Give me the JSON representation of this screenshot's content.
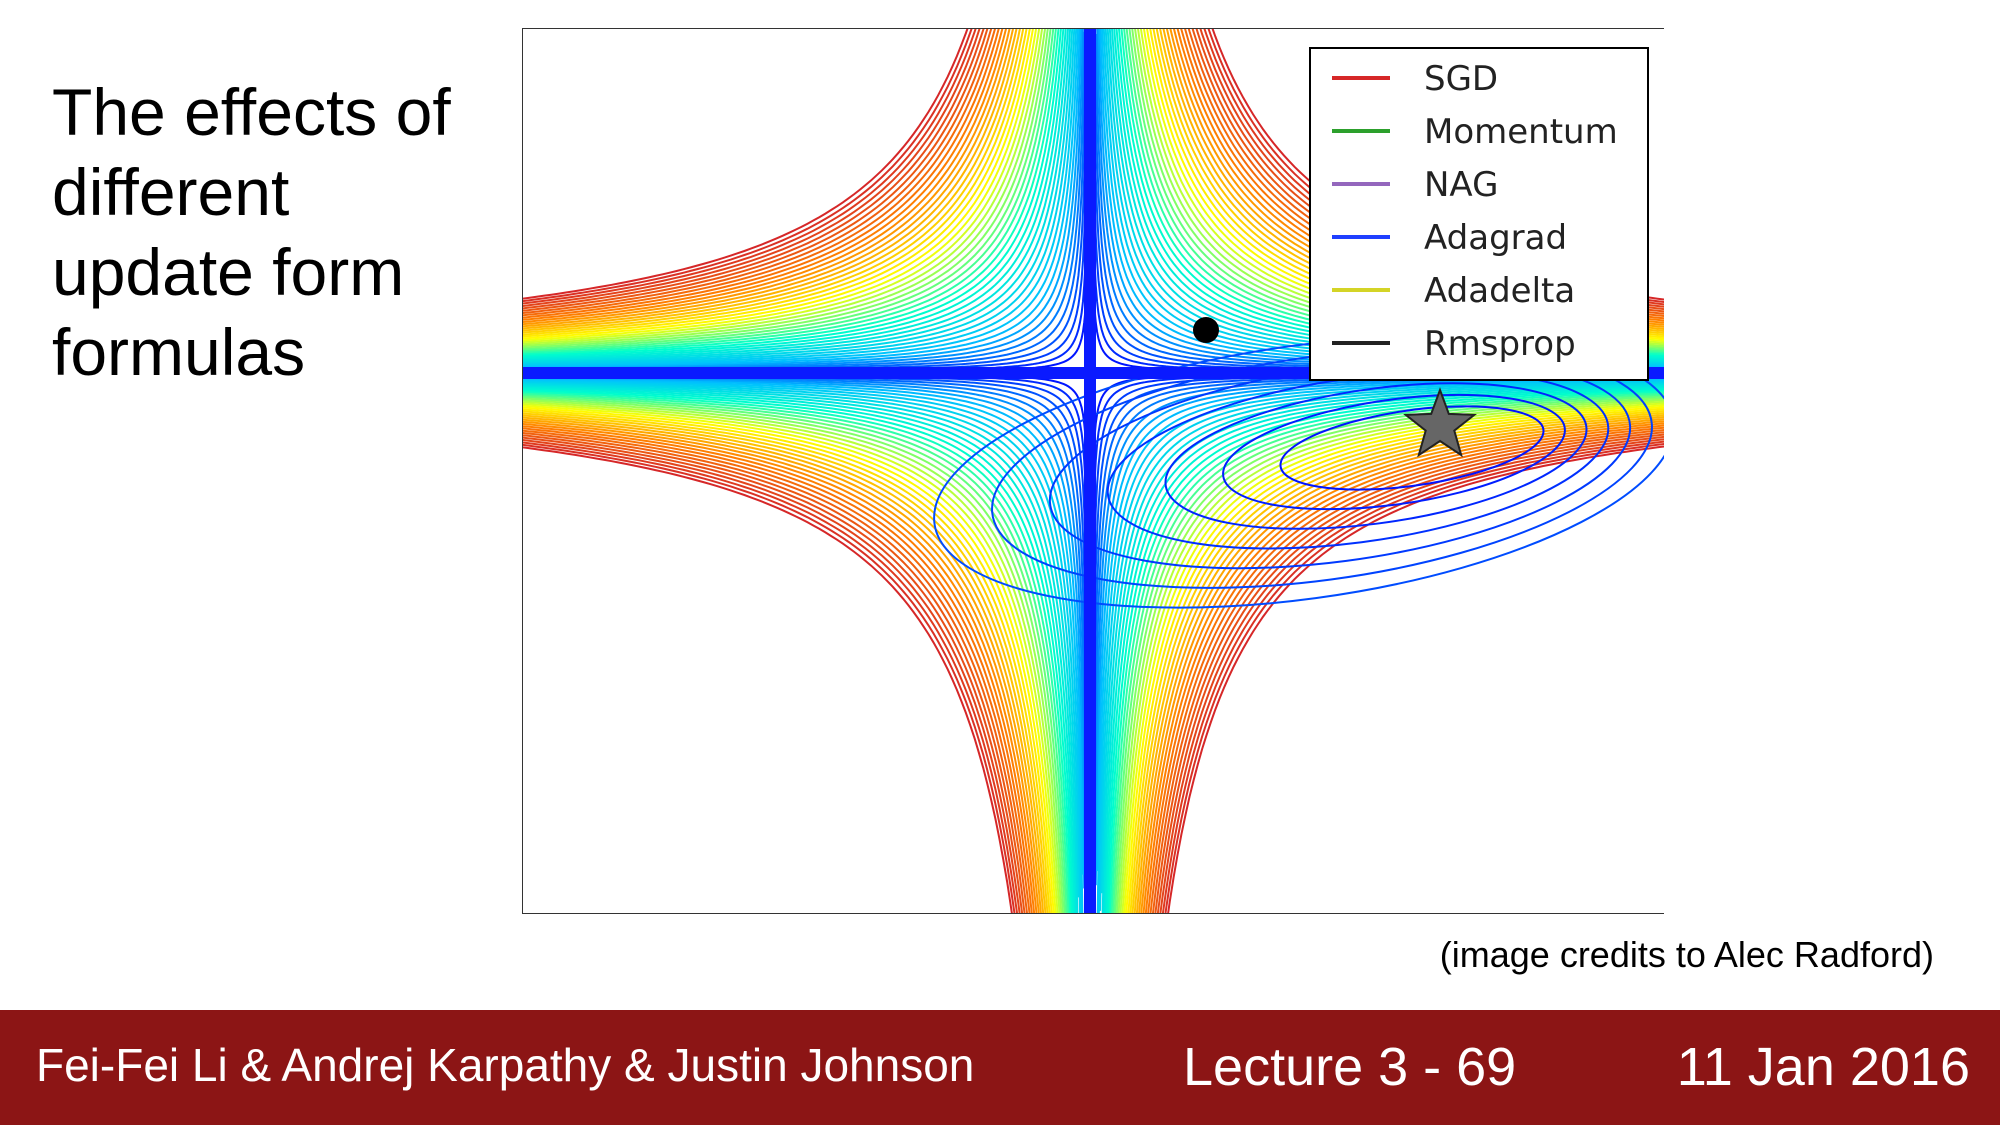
{
  "slide": {
    "title_lines": [
      "The effects of",
      "different",
      "update form",
      "formulas"
    ]
  },
  "figure": {
    "legend": [
      {
        "label": "SGD",
        "color": "#d62728",
        "icon": "legend-line"
      },
      {
        "label": "Momentum",
        "color": "#2ca02c",
        "icon": "legend-line"
      },
      {
        "label": "NAG",
        "color": "#9467bd",
        "icon": "legend-line"
      },
      {
        "label": "Adagrad",
        "color": "#1f3fff",
        "icon": "legend-line"
      },
      {
        "label": "Adadelta",
        "color": "#d4d426",
        "icon": "legend-line"
      },
      {
        "label": "Rmsprop",
        "color": "#222222",
        "icon": "legend-line"
      }
    ],
    "markers": {
      "start_point": "black-dot",
      "minimum": "star-icon"
    },
    "colormap": [
      "#0000ff",
      "#00bfff",
      "#00ffcc",
      "#ffff00",
      "#ff8000",
      "#d62728"
    ]
  },
  "credits": "(image credits to Alec Radford)",
  "footer": {
    "authors": "Fei-Fei Li & Andrej Karpathy & Justin Johnson",
    "lecture": "Lecture 3 - 69",
    "date": "11 Jan 2016",
    "background": "#8c1515"
  }
}
